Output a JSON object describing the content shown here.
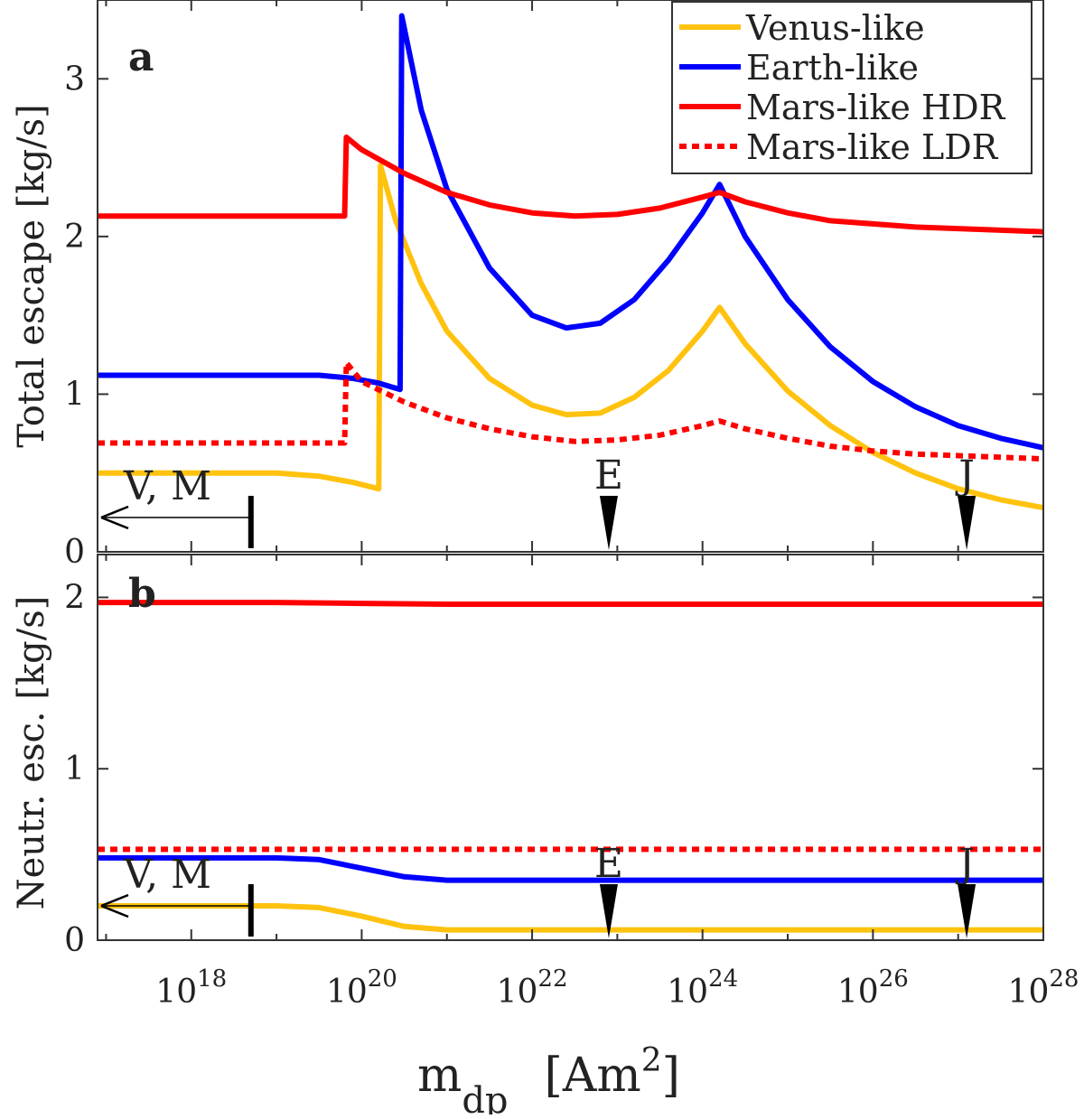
{
  "chart_data": [
    {
      "panel": "a",
      "type": "line",
      "ylabel": "Total escape  [kg/s]",
      "xscale": "log10",
      "xlim_log10": [
        16.9,
        28
      ],
      "ylim": [
        0,
        3.5
      ],
      "yticks": [
        0,
        1,
        2,
        3
      ],
      "legend_position": "top-right",
      "series": [
        {
          "name": "Venus-like",
          "color": "#FFC20E",
          "style": "solid",
          "x_log10": [
            16.9,
            18.5,
            19.0,
            19.5,
            19.9,
            20.2,
            20.22,
            20.4,
            20.7,
            21.0,
            21.5,
            22.0,
            22.4,
            22.8,
            23.2,
            23.6,
            24.0,
            24.2,
            24.5,
            25.0,
            25.5,
            26.0,
            26.5,
            27.0,
            27.5,
            28.0
          ],
          "y": [
            0.5,
            0.5,
            0.5,
            0.48,
            0.44,
            0.4,
            2.45,
            2.1,
            1.7,
            1.4,
            1.1,
            0.93,
            0.87,
            0.88,
            0.98,
            1.15,
            1.4,
            1.55,
            1.32,
            1.02,
            0.8,
            0.63,
            0.5,
            0.4,
            0.33,
            0.28
          ]
        },
        {
          "name": "Earth-like",
          "color": "#0000FF",
          "style": "solid",
          "x_log10": [
            16.9,
            18.5,
            19.0,
            19.5,
            19.9,
            20.2,
            20.45,
            20.47,
            20.7,
            21.0,
            21.5,
            22.0,
            22.4,
            22.8,
            23.2,
            23.6,
            24.0,
            24.2,
            24.5,
            25.0,
            25.5,
            26.0,
            26.5,
            27.0,
            27.5,
            28.0
          ],
          "y": [
            1.12,
            1.12,
            1.12,
            1.12,
            1.1,
            1.07,
            1.03,
            3.4,
            2.8,
            2.3,
            1.8,
            1.5,
            1.42,
            1.45,
            1.6,
            1.85,
            2.15,
            2.33,
            2.0,
            1.6,
            1.3,
            1.08,
            0.92,
            0.8,
            0.72,
            0.66
          ]
        },
        {
          "name": "Mars-like HDR",
          "color": "#FF0000",
          "style": "solid",
          "x_log10": [
            16.9,
            19.8,
            19.82,
            20.0,
            20.5,
            21.0,
            21.5,
            22.0,
            22.5,
            23.0,
            23.5,
            24.0,
            24.2,
            24.5,
            25.0,
            25.5,
            26.0,
            26.5,
            27.0,
            27.5,
            28.0
          ],
          "y": [
            2.13,
            2.13,
            2.63,
            2.55,
            2.4,
            2.28,
            2.2,
            2.15,
            2.13,
            2.14,
            2.18,
            2.25,
            2.28,
            2.22,
            2.15,
            2.1,
            2.08,
            2.06,
            2.05,
            2.04,
            2.03
          ]
        },
        {
          "name": "Mars-like LDR",
          "color": "#FF0000",
          "style": "dotted",
          "x_log10": [
            16.9,
            19.8,
            19.82,
            20.0,
            20.5,
            21.0,
            21.5,
            22.0,
            22.5,
            23.0,
            23.5,
            24.0,
            24.2,
            24.5,
            25.0,
            25.5,
            26.0,
            26.5,
            27.0,
            27.5,
            28.0
          ],
          "y": [
            0.69,
            0.69,
            1.2,
            1.08,
            0.95,
            0.85,
            0.78,
            0.73,
            0.7,
            0.71,
            0.74,
            0.8,
            0.83,
            0.78,
            0.72,
            0.67,
            0.64,
            0.62,
            0.61,
            0.6,
            0.59
          ]
        }
      ]
    },
    {
      "panel": "b",
      "type": "line",
      "ylabel": "Neutr. esc. [kg/s]",
      "xscale": "log10",
      "xlim_log10": [
        16.9,
        28
      ],
      "ylim": [
        0,
        2.25
      ],
      "yticks": [
        0,
        1,
        2
      ],
      "series": [
        {
          "name": "Venus-like",
          "color": "#FFC20E",
          "style": "solid",
          "x_log10": [
            16.9,
            19.0,
            19.5,
            20.0,
            20.5,
            21.0,
            22.0,
            24.0,
            26.0,
            28.0
          ],
          "y": [
            0.2,
            0.2,
            0.19,
            0.14,
            0.08,
            0.06,
            0.06,
            0.06,
            0.06,
            0.06
          ]
        },
        {
          "name": "Earth-like",
          "color": "#0000FF",
          "style": "solid",
          "x_log10": [
            16.9,
            19.0,
            19.5,
            20.0,
            20.5,
            21.0,
            22.0,
            24.0,
            26.0,
            28.0
          ],
          "y": [
            0.48,
            0.48,
            0.47,
            0.42,
            0.37,
            0.35,
            0.35,
            0.35,
            0.35,
            0.35
          ]
        },
        {
          "name": "Mars-like HDR",
          "color": "#FF0000",
          "style": "solid",
          "x_log10": [
            16.9,
            19.0,
            20.0,
            21.0,
            22.0,
            24.0,
            26.0,
            28.0
          ],
          "y": [
            1.97,
            1.97,
            1.965,
            1.96,
            1.96,
            1.96,
            1.96,
            1.96
          ]
        },
        {
          "name": "Mars-like LDR",
          "color": "#FF0000",
          "style": "dotted",
          "x_log10": [
            16.9,
            20.0,
            24.0,
            28.0
          ],
          "y": [
            0.53,
            0.53,
            0.53,
            0.53
          ]
        }
      ]
    }
  ],
  "legend": [
    "Venus-like",
    "Earth-like",
    "Mars-like HDR",
    "Mars-like LDR"
  ],
  "xticks": [
    {
      "base": "10",
      "exp": "18",
      "log10": 18
    },
    {
      "base": "10",
      "exp": "20",
      "log10": 20
    },
    {
      "base": "10",
      "exp": "22",
      "log10": 22
    },
    {
      "base": "10",
      "exp": "24",
      "log10": 24
    },
    {
      "base": "10",
      "exp": "26",
      "log10": 26
    },
    {
      "base": "10",
      "exp": "28",
      "log10": 28
    }
  ],
  "xlabel": {
    "main": "m",
    "sub": "dp",
    "units": "[Am",
    "units_sup": "2",
    "units_close": "]"
  },
  "markers": {
    "vm_label": "V, M",
    "vm_log10": 18.7,
    "earth_label": "E",
    "earth_log10": 22.9,
    "jupiter_label": "J",
    "jupiter_log10": 27.1
  }
}
